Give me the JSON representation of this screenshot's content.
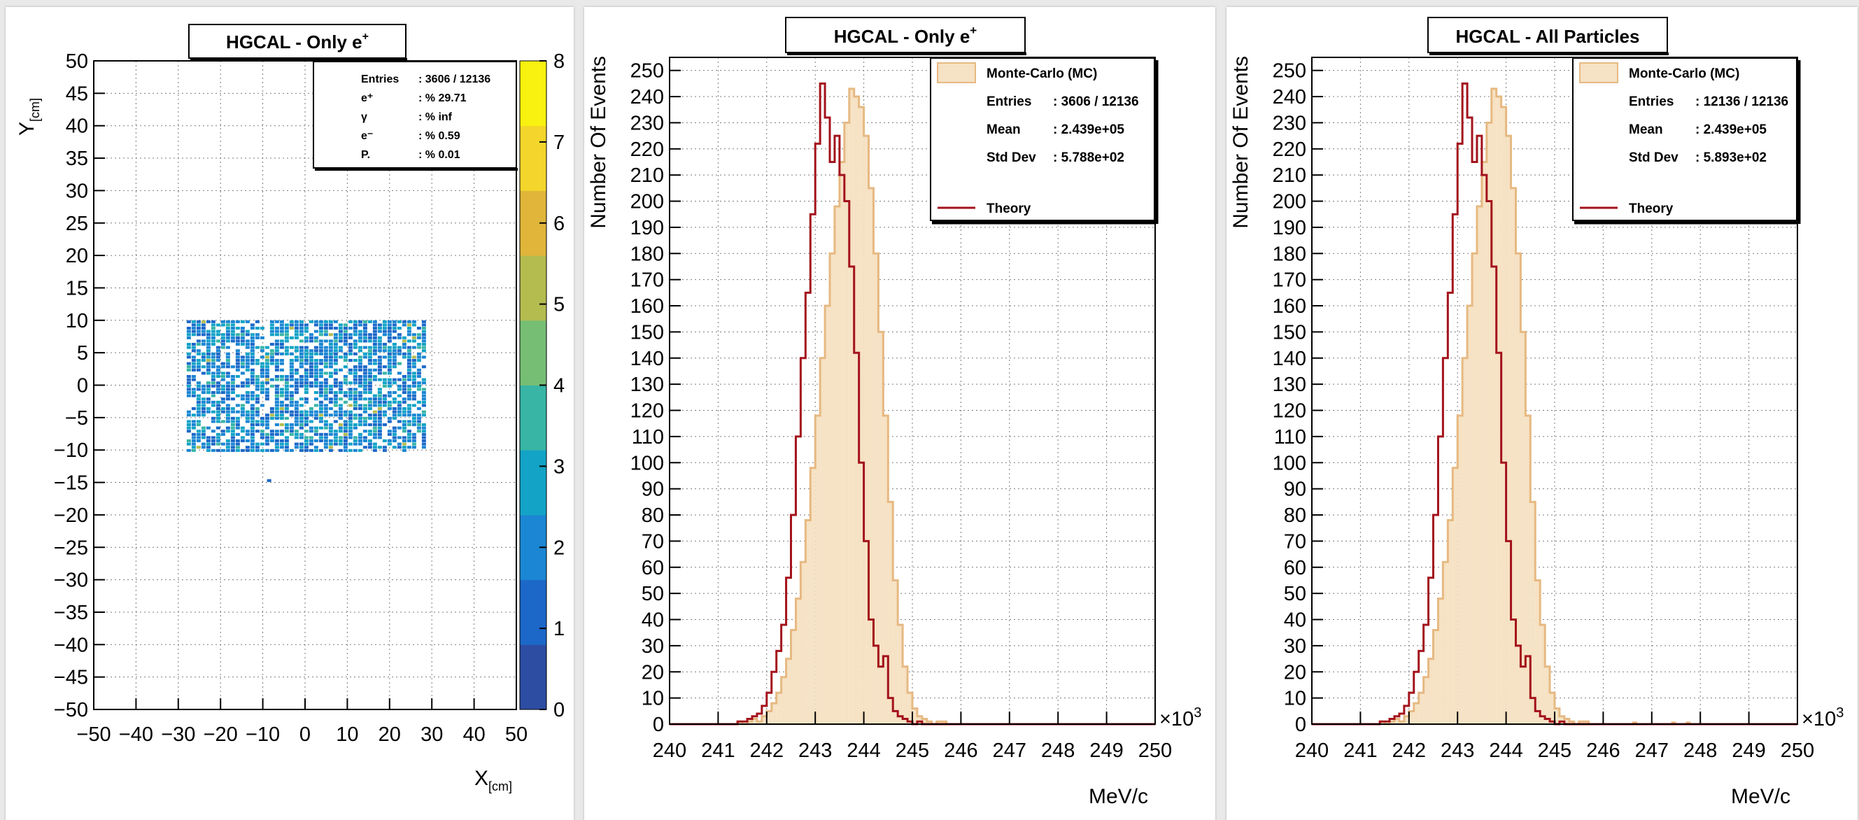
{
  "colors": {
    "mc_fill": "#f6e2c4",
    "mc_line": "#e6b982",
    "theory": "#a3121b",
    "grid": "#7a7a7a",
    "palette": [
      "#2d4da3",
      "#1c68c8",
      "#1b86d3",
      "#12a3c6",
      "#38b5a5",
      "#76be74",
      "#b4bc50",
      "#e0b53a",
      "#f3d52b",
      "#f9f10f"
    ]
  },
  "chart_data": [
    {
      "type": "heatmap",
      "title": "HGCAL - Only e",
      "title_sup": "+",
      "xlabel": "X",
      "xlabel_sub": "[cm]",
      "ylabel": "Y",
      "ylabel_sub": "[cm]",
      "xlim": [
        -50,
        50
      ],
      "ylim": [
        -50,
        50
      ],
      "x_ticks": [
        "−50",
        "−40",
        "−30",
        "−20",
        "−10",
        "0",
        "10",
        "20",
        "30",
        "40",
        "50"
      ],
      "y_ticks": [
        "−50",
        "−45",
        "−40",
        "−35",
        "−30",
        "−25",
        "−20",
        "−15",
        "−10",
        "−5",
        "0",
        "5",
        "10",
        "15",
        "20",
        "25",
        "30",
        "35",
        "40",
        "45",
        "50"
      ],
      "z_range": [
        0,
        8
      ],
      "z_ticks": [
        "0",
        "1",
        "2",
        "3",
        "4",
        "5",
        "6",
        "7",
        "8"
      ],
      "grid": true,
      "filled_region": {
        "x": [
          -28,
          28
        ],
        "y": [
          -10,
          10
        ]
      },
      "stats": [
        {
          "label": "Entries",
          "value": ": 3606 / 12136"
        },
        {
          "label": "e⁺",
          "value": ": % 29.71"
        },
        {
          "label": "γ",
          "value": ": % inf"
        },
        {
          "label": "e⁻",
          "value": ": % 0.59"
        },
        {
          "label": "P.",
          "value": ": % 0.01"
        }
      ],
      "stats_placement": "top-right"
    },
    {
      "type": "histogram",
      "title": "HGCAL - Only e",
      "title_sup": "+",
      "ylabel": "Number Of Events",
      "xlabel": "MeV/c",
      "x_multiplier": "×10",
      "x_multiplier_sup": "3",
      "xlim": [
        240,
        250
      ],
      "ylim": [
        0,
        255
      ],
      "x_ticks": [
        "240",
        "241",
        "242",
        "243",
        "244",
        "245",
        "246",
        "247",
        "248",
        "249",
        "250"
      ],
      "y_ticks": [
        "0",
        "10",
        "20",
        "30",
        "40",
        "50",
        "60",
        "70",
        "80",
        "90",
        "100",
        "110",
        "120",
        "130",
        "140",
        "150",
        "160",
        "170",
        "180",
        "190",
        "200",
        "210",
        "220",
        "230",
        "240",
        "250"
      ],
      "grid": true,
      "legend_placement": "top-right",
      "legend": {
        "mc_label": "Monte-Carlo (MC)",
        "theory_label": "Theory",
        "stats": [
          {
            "label": "Entries",
            "value": ": 3606 / 12136"
          },
          {
            "label": "Mean",
            "value": ": 2.439e+05"
          },
          {
            "label": "Std Dev",
            "value": ": 5.788e+02"
          }
        ]
      },
      "bin_edges": [
        241.4,
        245.7
      ],
      "mc_values": [
        1,
        0,
        1,
        2,
        1,
        3,
        5,
        8,
        12,
        18,
        25,
        36,
        48,
        62,
        78,
        98,
        118,
        140,
        160,
        180,
        198,
        215,
        230,
        243,
        240,
        236,
        225,
        205,
        180,
        150,
        118,
        85,
        55,
        38,
        22,
        12,
        6,
        3,
        2,
        1,
        0,
        1,
        1
      ],
      "theory_values": [
        1,
        1,
        2,
        3,
        4,
        7,
        12,
        20,
        28,
        38,
        56,
        80,
        110,
        140,
        165,
        195,
        222,
        245,
        232,
        215,
        225,
        210,
        200,
        175,
        142,
        100,
        70,
        40,
        30,
        22,
        26,
        10,
        5,
        3,
        2,
        1,
        0,
        1,
        0,
        0,
        0,
        0,
        0
      ]
    },
    {
      "type": "histogram",
      "title": "HGCAL - All Particles",
      "title_sup": "",
      "ylabel": "Number Of Events",
      "xlabel": "MeV/c",
      "x_multiplier": "×10",
      "x_multiplier_sup": "3",
      "xlim": [
        240,
        250
      ],
      "ylim": [
        0,
        255
      ],
      "x_ticks": [
        "240",
        "241",
        "242",
        "243",
        "244",
        "245",
        "246",
        "247",
        "248",
        "249",
        "250"
      ],
      "y_ticks": [
        "0",
        "10",
        "20",
        "30",
        "40",
        "50",
        "60",
        "70",
        "80",
        "90",
        "100",
        "110",
        "120",
        "130",
        "140",
        "150",
        "160",
        "170",
        "180",
        "190",
        "200",
        "210",
        "220",
        "230",
        "240",
        "250"
      ],
      "grid": true,
      "legend_placement": "top-right",
      "legend": {
        "mc_label": "Monte-Carlo (MC)",
        "theory_label": "Theory",
        "stats": [
          {
            "label": "Entries",
            "value": ": 12136 / 12136"
          },
          {
            "label": "Mean",
            "value": ": 2.439e+05"
          },
          {
            "label": "Std Dev",
            "value": ": 5.893e+02"
          }
        ]
      },
      "bin_edges": [
        241.4,
        245.7
      ],
      "mc_values": [
        1,
        0,
        1,
        2,
        1,
        3,
        5,
        8,
        12,
        18,
        25,
        36,
        48,
        62,
        78,
        98,
        118,
        140,
        160,
        180,
        198,
        215,
        230,
        243,
        240,
        236,
        225,
        205,
        180,
        150,
        118,
        85,
        55,
        38,
        22,
        12,
        6,
        3,
        2,
        1,
        0,
        1,
        1
      ],
      "theory_values": [
        1,
        1,
        2,
        3,
        4,
        7,
        12,
        20,
        28,
        38,
        56,
        80,
        110,
        140,
        165,
        195,
        222,
        245,
        232,
        215,
        225,
        210,
        200,
        175,
        142,
        100,
        70,
        40,
        30,
        22,
        26,
        10,
        5,
        3,
        2,
        1,
        0,
        1,
        0,
        0,
        0,
        0,
        0
      ],
      "tail_bins": [
        {
          "x": 246.6,
          "v": 1
        },
        {
          "x": 247.4,
          "v": 1
        },
        {
          "x": 247.7,
          "v": 1
        }
      ]
    }
  ]
}
